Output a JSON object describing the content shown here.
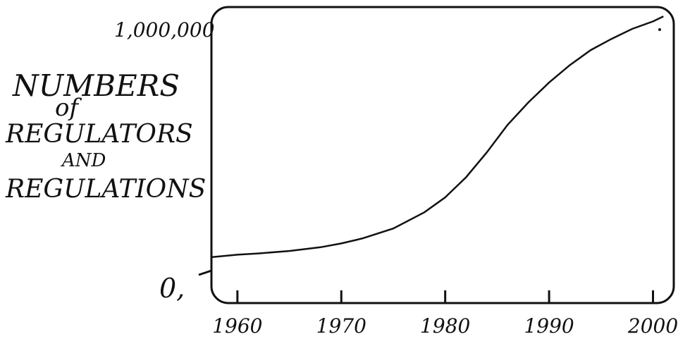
{
  "chart_data": {
    "type": "line",
    "title": "",
    "xlabel": "",
    "ylabel_lines": [
      "NUMBERS",
      "of",
      "REGULATORS",
      "AND",
      "REGULATIONS"
    ],
    "x_ticks": [
      "1960",
      "1970",
      "1980",
      "1990",
      "2000"
    ],
    "y_ticks": [
      "0,",
      "1,000,000"
    ],
    "xlim": [
      1957.5,
      2002
    ],
    "ylim": [
      0,
      1000000
    ],
    "grid": false,
    "legend": "none",
    "series": [
      {
        "x": [
          1957.5,
          1960,
          1962,
          1965,
          1968,
          1970,
          1972,
          1975,
          1978,
          1980,
          1982,
          1984,
          1986,
          1988,
          1990,
          1992,
          1994,
          1996,
          1998,
          2000,
          2001
        ],
        "y": [
          20000,
          30000,
          35000,
          45000,
          60000,
          75000,
          95000,
          135000,
          200000,
          260000,
          340000,
          440000,
          550000,
          640000,
          720000,
          790000,
          850000,
          895000,
          935000,
          965000,
          985000
        ]
      }
    ],
    "colors": {
      "line": "#111111",
      "axes": "#111111",
      "background": "#ffffff"
    }
  }
}
